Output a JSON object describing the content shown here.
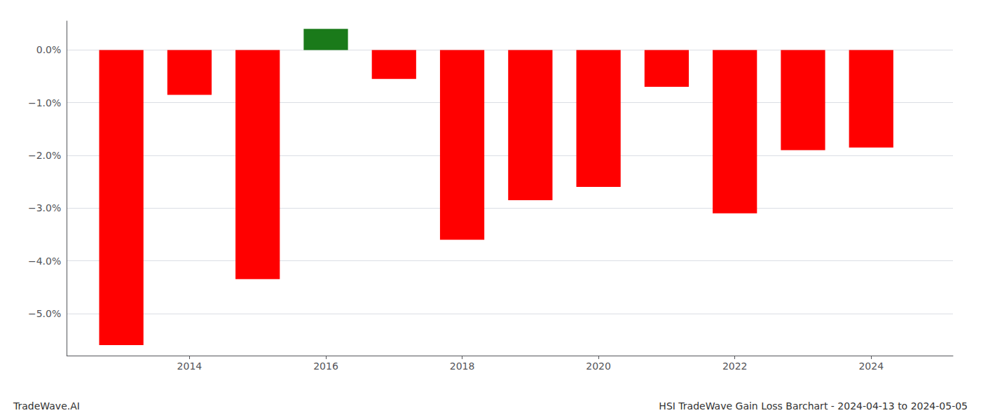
{
  "chart_data": {
    "type": "bar",
    "title": "HSI TradeWave Gain Loss Barchart - 2024-04-13 to 2024-05-05",
    "annotations": [
      "TradeWave.AI"
    ],
    "x": [
      2013,
      2014,
      2015,
      2016,
      2017,
      2018,
      2019,
      2020,
      2021,
      2022,
      2023,
      2024
    ],
    "values": [
      -5.6,
      -0.85,
      -4.35,
      0.4,
      -0.55,
      -3.6,
      -2.85,
      -2.6,
      -0.7,
      -3.1,
      -1.9,
      -1.85
    ],
    "colors": [
      "#ff0000",
      "#ff0000",
      "#ff0000",
      "#1a7a1a",
      "#ff0000",
      "#ff0000",
      "#ff0000",
      "#ff0000",
      "#ff0000",
      "#ff0000",
      "#ff0000",
      "#ff0000"
    ],
    "xlim": [
      2012.2,
      2025.2
    ],
    "xticks": [
      2014,
      2016,
      2018,
      2020,
      2022,
      2024
    ],
    "ylim": [
      -5.8,
      0.55
    ],
    "yticks": [
      {
        "value": 0.0,
        "label": "0.0%"
      },
      {
        "value": -1.0,
        "label": "−1.0%"
      },
      {
        "value": -2.0,
        "label": "−2.0%"
      },
      {
        "value": -3.0,
        "label": "−3.0%"
      },
      {
        "value": -4.0,
        "label": "−4.0%"
      },
      {
        "value": -5.0,
        "label": "−5.0%"
      }
    ],
    "grid": true
  }
}
